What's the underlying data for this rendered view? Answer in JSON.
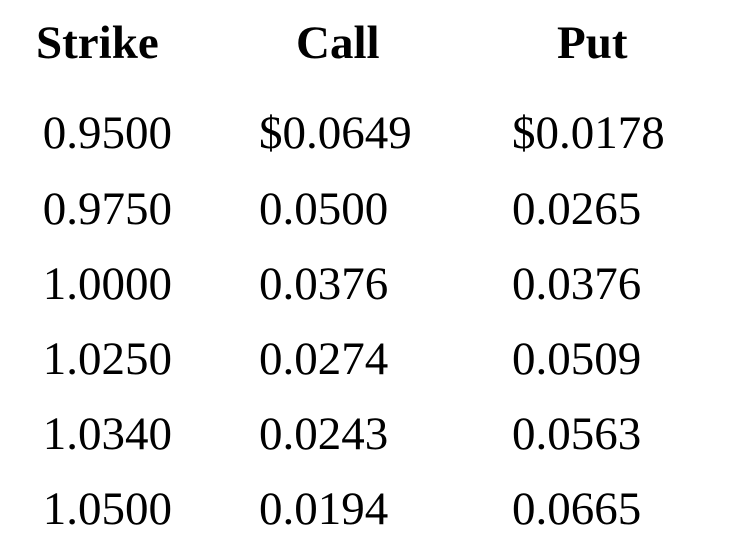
{
  "table": {
    "headers": [
      "Strike",
      "Call",
      "Put"
    ],
    "rows": [
      [
        "0.9500",
        "$0.0649",
        "$0.0178"
      ],
      [
        "0.9750",
        "0.0500",
        "0.0265"
      ],
      [
        "1.0000",
        "0.0376",
        "0.0376"
      ],
      [
        "1.0250",
        "0.0274",
        "0.0509"
      ],
      [
        "1.0340",
        "0.0243",
        "0.0563"
      ],
      [
        "1.0500",
        "0.0194",
        "0.0665"
      ]
    ]
  }
}
